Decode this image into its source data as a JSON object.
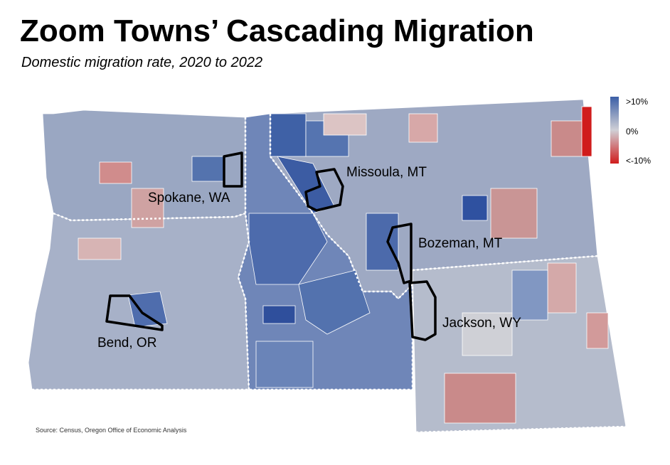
{
  "title": "Zoom Towns’ Cascading Migration",
  "subtitle": "Domestic migration rate, 2020 to 2022",
  "legend": [
    ">10%",
    "0%",
    "<-10%"
  ],
  "cities": [
    "Spokane, WA",
    "Missoula, MT",
    "Bozeman, MT",
    "Jackson, WY",
    "Bend, OR"
  ],
  "source": "Source: Census, Oregon Office of Economic Analysis"
}
